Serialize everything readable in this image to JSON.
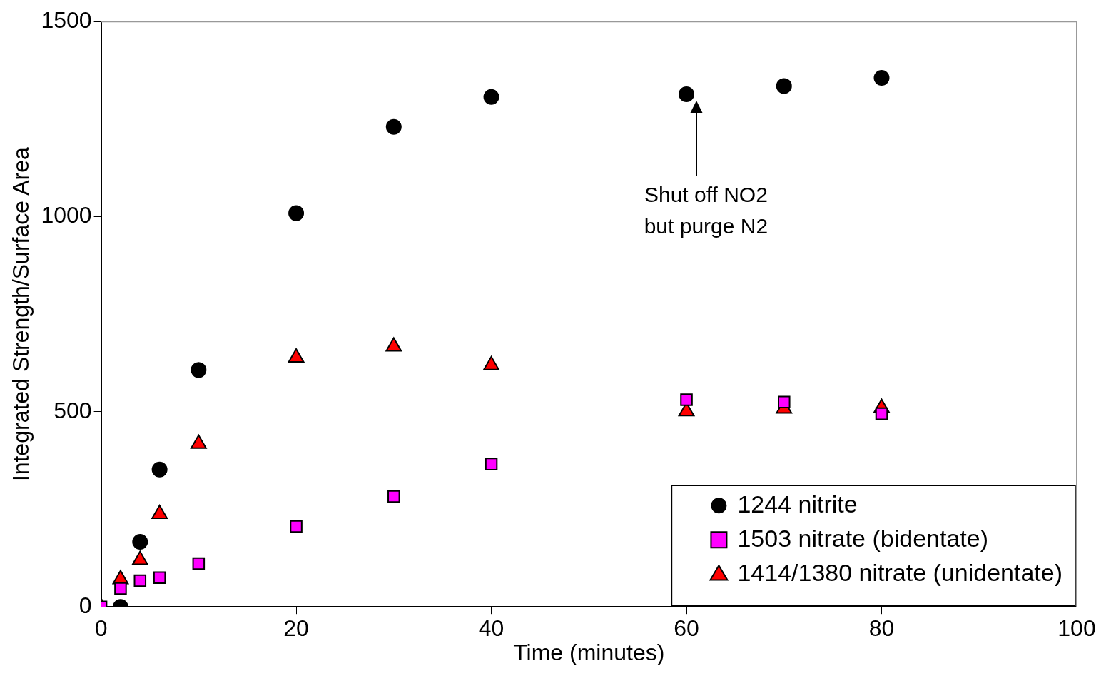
{
  "chart_data": {
    "type": "scatter",
    "xlabel": "Time (minutes)",
    "ylabel": "Integrated Strength/Surface Area",
    "xlim": [
      0,
      100
    ],
    "xticks": [
      0,
      20,
      40,
      60,
      80,
      100
    ],
    "ylim": [
      0,
      1500
    ],
    "yticks": [
      0,
      500,
      1000,
      1500
    ],
    "grid": false,
    "legend": "bottom right",
    "series": [
      {
        "name": "1244 nitrite",
        "color": "#000000",
        "marker": "circle",
        "x": [
          2,
          4,
          6,
          10,
          20,
          30,
          40,
          60,
          70,
          80
        ],
        "values": [
          0,
          167,
          352,
          607,
          1009,
          1230,
          1307,
          1314,
          1335,
          1356
        ]
      },
      {
        "name": "1503 nitrate (bidentate)",
        "color": "#ff00ff",
        "marker": "square",
        "x": [
          0,
          2,
          4,
          6,
          10,
          20,
          30,
          40,
          60,
          70,
          80
        ],
        "values": [
          0,
          47,
          67,
          75,
          111,
          206,
          283,
          366,
          531,
          525,
          495
        ]
      },
      {
        "name": "1414/1380 nitrate (unidentate)",
        "color": "#ff0000",
        "marker": "triangle",
        "x": [
          0,
          2,
          4,
          6,
          10,
          20,
          30,
          40,
          60,
          70,
          80
        ],
        "values": [
          0,
          71,
          120,
          238,
          418,
          639,
          667,
          619,
          501,
          508,
          510
        ]
      }
    ],
    "annotations": [
      "Shut off NO2\nbut purge N2"
    ]
  }
}
